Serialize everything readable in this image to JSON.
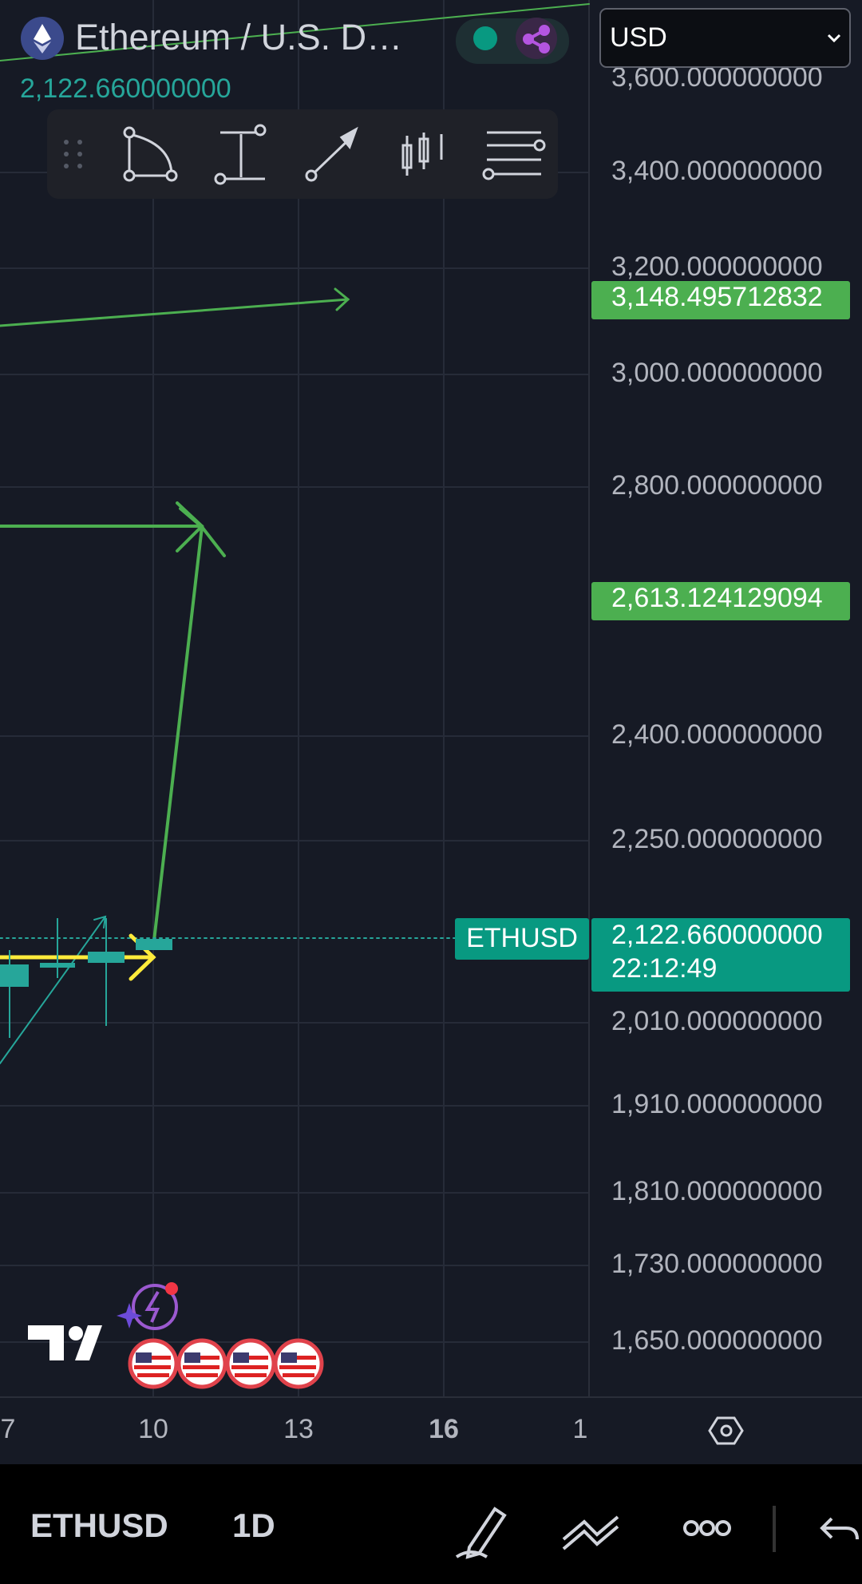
{
  "header": {
    "title": "Ethereum / U.S. D…",
    "last_price": "2,122.660000000",
    "currency": "USD"
  },
  "price_axis": {
    "labels": [
      "3,600.000000000",
      "3,400.000000000",
      "3,200.000000000",
      "3,000.000000000",
      "2,800.000000000",
      "2,400.000000000",
      "2,250.000000000",
      "2,010.000000000",
      "1,910.000000000",
      "1,810.000000000",
      "1,730.000000000",
      "1,650.000000000"
    ]
  },
  "badges": {
    "upper_level": "3,148.495712832",
    "mid_level": "2,613.124129094",
    "symbol": "ETHUSD",
    "current_price": "2,122.660000000",
    "countdown": "22:12:49"
  },
  "time_axis": {
    "labels": [
      "7",
      "10",
      "13",
      "16",
      "1"
    ]
  },
  "bottom_bar": {
    "symbol": "ETHUSD",
    "interval": "1D"
  }
}
